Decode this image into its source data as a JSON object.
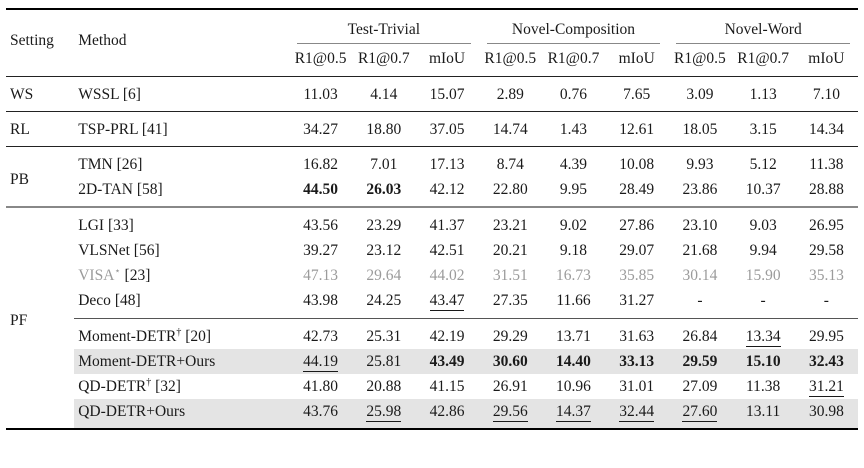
{
  "colors": {
    "highlight_bg": "#e4e4e4",
    "grayed_text": "#9b9b9b",
    "rule_black": "#000000",
    "rule_gray": "#888888"
  },
  "header": {
    "setting": "Setting",
    "method": "Method",
    "groups": [
      "Test-Trivial",
      "Novel-Composition",
      "Novel-Word"
    ],
    "metrics": [
      "R1@0.5",
      "R1@0.7",
      "mIoU"
    ]
  },
  "sections": [
    {
      "setting": "WS",
      "rows": [
        {
          "method": {
            "name": "WSSL",
            "cite": "[6]"
          },
          "values": [
            "11.03",
            "4.14",
            "15.07",
            "2.89",
            "0.76",
            "7.65",
            "3.09",
            "1.13",
            "7.10"
          ]
        }
      ]
    },
    {
      "setting": "RL",
      "rows": [
        {
          "method": {
            "name": "TSP-PRL",
            "cite": "[41]"
          },
          "values": [
            "34.27",
            "18.80",
            "37.05",
            "14.74",
            "1.43",
            "12.61",
            "18.05",
            "3.15",
            "14.34"
          ]
        }
      ]
    },
    {
      "setting": "PB",
      "rows": [
        {
          "method": {
            "name": "TMN",
            "cite": "[26]"
          },
          "values": [
            "16.82",
            "7.01",
            "17.13",
            "8.74",
            "4.39",
            "10.08",
            "9.93",
            "5.12",
            "11.38"
          ]
        },
        {
          "method": {
            "name": "2D-TAN",
            "cite": "[58]"
          },
          "values": [
            "44.50",
            "26.03",
            "42.12",
            "22.80",
            "9.95",
            "28.49",
            "23.86",
            "10.37",
            "28.88"
          ],
          "bold_cols": [
            0,
            1
          ]
        }
      ]
    },
    {
      "setting": "PF",
      "rows": [
        {
          "method": {
            "name": "LGI",
            "cite": "[33]"
          },
          "values": [
            "43.56",
            "23.29",
            "41.37",
            "23.21",
            "9.02",
            "27.86",
            "23.10",
            "9.03",
            "26.95"
          ]
        },
        {
          "method": {
            "name": "VLSNet",
            "cite": "[56]"
          },
          "values": [
            "39.27",
            "23.12",
            "42.51",
            "20.21",
            "9.18",
            "29.07",
            "21.68",
            "9.94",
            "29.58"
          ]
        },
        {
          "method": {
            "name": "VISA",
            "sup": "⋆",
            "cite": "[23]"
          },
          "grayed": true,
          "values": [
            "47.13",
            "29.64",
            "44.02",
            "31.51",
            "16.73",
            "35.85",
            "30.14",
            "15.90",
            "35.13"
          ]
        },
        {
          "method": {
            "name": "Deco",
            "cite": "[48]"
          },
          "space_below": true,
          "values": [
            "43.98",
            "24.25",
            "43.47",
            "27.35",
            "11.66",
            "31.27",
            "-",
            "-",
            "-"
          ],
          "underline_cols": [
            2
          ]
        },
        {
          "method": {
            "name": "Moment-DETR",
            "sup": "†",
            "cite": "[20]"
          },
          "partial_rule_above": true,
          "values": [
            "42.73",
            "25.31",
            "42.19",
            "29.29",
            "13.71",
            "31.63",
            "26.84",
            "13.34",
            "29.95"
          ],
          "underline_cols": [
            7
          ]
        },
        {
          "method": {
            "name": "Moment-DETR+Ours"
          },
          "highlight": true,
          "values": [
            "44.19",
            "25.81",
            "43.49",
            "30.60",
            "14.40",
            "33.13",
            "29.59",
            "15.10",
            "32.43"
          ],
          "bold_cols": [
            2,
            3,
            4,
            5,
            6,
            7,
            8
          ],
          "underline_cols": [
            0
          ]
        },
        {
          "method": {
            "name": "QD-DETR",
            "sup": "†",
            "cite": "[32]"
          },
          "values": [
            "41.80",
            "20.88",
            "41.15",
            "26.91",
            "10.96",
            "31.01",
            "27.09",
            "11.38",
            "31.21"
          ],
          "underline_cols": [
            8
          ]
        },
        {
          "method": {
            "name": "QD-DETR+Ours"
          },
          "highlight": true,
          "values": [
            "43.76",
            "25.98",
            "42.86",
            "29.56",
            "14.37",
            "32.44",
            "27.60",
            "13.11",
            "30.98"
          ],
          "underline_cols": [
            1,
            3,
            4,
            5,
            6
          ]
        }
      ]
    }
  ]
}
